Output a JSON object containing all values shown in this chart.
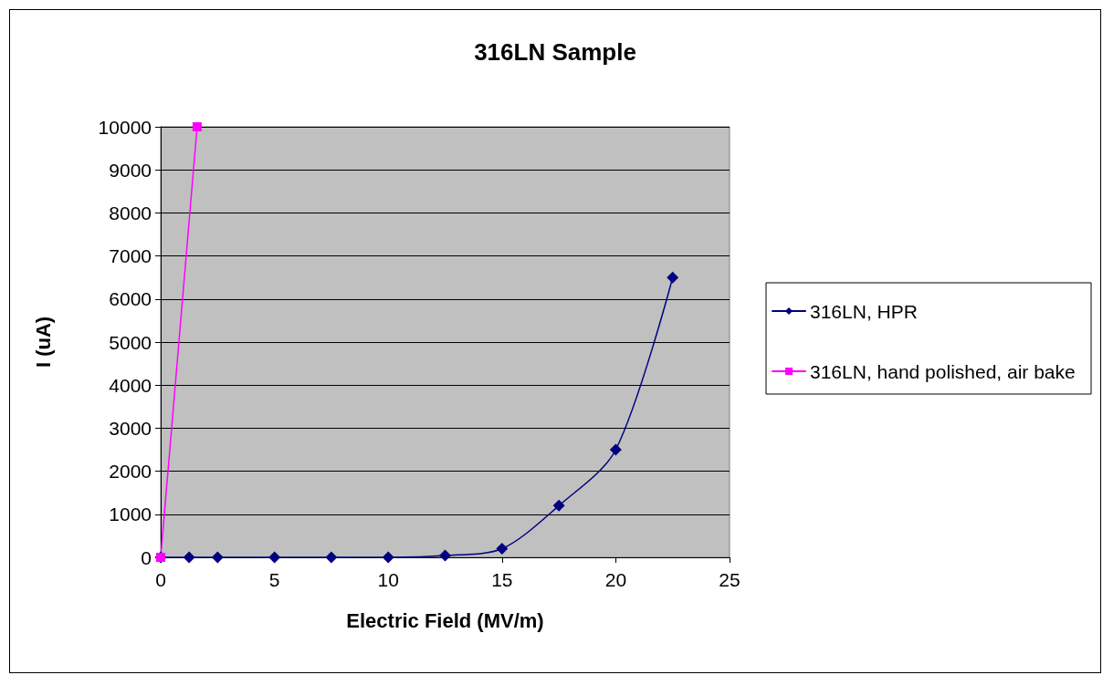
{
  "chart_data": {
    "type": "line",
    "title": "316LN Sample",
    "xlabel": "Electric Field (MV/m)",
    "ylabel": "I (uA)",
    "series": [
      {
        "name": "316LN, HPR",
        "color": "#000080",
        "marker": "diamond",
        "x": [
          0,
          1.25,
          2.5,
          5,
          7.5,
          10,
          12.5,
          15,
          17.5,
          20,
          22.5
        ],
        "values": [
          0,
          0,
          0,
          0,
          0,
          0,
          40,
          200,
          1200,
          2500,
          6500
        ]
      },
      {
        "name": "316LN, hand polished, air bake",
        "color": "#ff00ff",
        "marker": "square",
        "x": [
          0,
          1.6
        ],
        "values": [
          0,
          10000
        ]
      }
    ],
    "xlim": [
      0,
      25
    ],
    "xticks": [
      0,
      5,
      10,
      15,
      20,
      25
    ],
    "ylim": [
      0,
      10000
    ],
    "yticks": [
      0,
      1000,
      2000,
      3000,
      4000,
      5000,
      6000,
      7000,
      8000,
      9000,
      10000
    ],
    "grid": "y",
    "legend": "right"
  }
}
